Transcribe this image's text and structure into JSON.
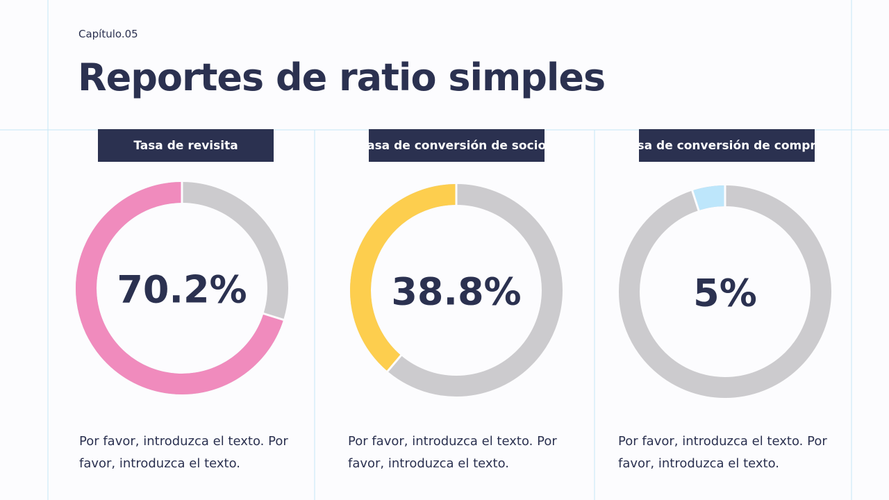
{
  "header": {
    "chapter": "Capítulo.05",
    "title": "Reportes de ratio simples"
  },
  "chart_data": [
    {
      "type": "donut",
      "title": "Tasa de revisita",
      "values": [
        70.2
      ],
      "value_labels": [
        "70.2%"
      ],
      "color": "#f08bbd",
      "track_color": "#cccbce",
      "description": "Por favor, introduzca el texto. Por favor, introduzca el texto."
    },
    {
      "type": "donut",
      "title": "Tasa de conversión de socios",
      "values": [
        38.8
      ],
      "value_labels": [
        "38.8%"
      ],
      "color": "#fdce4e",
      "track_color": "#cccbce",
      "description": "Por favor, introduzca el texto. Por favor, introduzca el texto."
    },
    {
      "type": "donut",
      "title": "Tasa de conversión de compras",
      "values": [
        5
      ],
      "value_labels": [
        "5%"
      ],
      "color": "#bde6fb",
      "track_color": "#cccbce",
      "description": "Por favor, introduzca el texto. Por favor, introduzca el texto."
    }
  ]
}
